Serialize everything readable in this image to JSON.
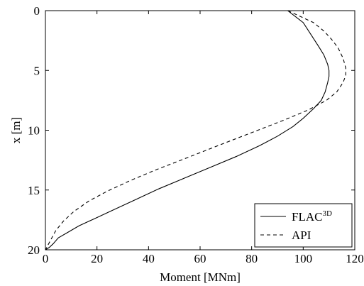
{
  "chart_data": {
    "type": "line",
    "xlabel": "Moment [MNm]",
    "ylabel": "x [m]",
    "xlim": [
      0,
      120
    ],
    "ylim": [
      0,
      20
    ],
    "y_reversed": true,
    "x_ticks": [
      "0",
      "20",
      "40",
      "60",
      "80",
      "100",
      "120"
    ],
    "y_ticks": [
      "0",
      "5",
      "10",
      "15",
      "20"
    ],
    "grid": false,
    "legend_position": "bottom-right",
    "series": [
      {
        "name": "FLAC",
        "name_superscript": "3D",
        "line_style": "solid",
        "color": "#000000",
        "points": [
          [
            94,
            0
          ],
          [
            97,
            0.5
          ],
          [
            100,
            1
          ],
          [
            103,
            2
          ],
          [
            106,
            3
          ],
          [
            108,
            3.7
          ],
          [
            109.5,
            4.5
          ],
          [
            110,
            5
          ],
          [
            110,
            5.5
          ],
          [
            109.5,
            6
          ],
          [
            108.5,
            6.8
          ],
          [
            107,
            7.5
          ],
          [
            104,
            8.2
          ],
          [
            100,
            9
          ],
          [
            96,
            9.7
          ],
          [
            90,
            10.5
          ],
          [
            83,
            11.3
          ],
          [
            74,
            12.2
          ],
          [
            64,
            13.1
          ],
          [
            54,
            14
          ],
          [
            44,
            14.9
          ],
          [
            35,
            15.8
          ],
          [
            26,
            16.7
          ],
          [
            19,
            17.4
          ],
          [
            13,
            18
          ],
          [
            9,
            18.5
          ],
          [
            5,
            19
          ],
          [
            3,
            19.5
          ],
          [
            1.5,
            19.8
          ],
          [
            0,
            20
          ]
        ]
      },
      {
        "name": "API",
        "line_style": "dashed",
        "color": "#000000",
        "points": [
          [
            94,
            0
          ],
          [
            99,
            0.5
          ],
          [
            104,
            1
          ],
          [
            108,
            1.7
          ],
          [
            111,
            2.4
          ],
          [
            113.5,
            3.1
          ],
          [
            115.5,
            4
          ],
          [
            116.5,
            4.8
          ],
          [
            116.5,
            5.4
          ],
          [
            115.5,
            6
          ],
          [
            113,
            6.8
          ],
          [
            109,
            7.5
          ],
          [
            102,
            8.3
          ],
          [
            92,
            9.2
          ],
          [
            80,
            10.2
          ],
          [
            68,
            11.2
          ],
          [
            55,
            12.3
          ],
          [
            43,
            13.3
          ],
          [
            33,
            14.2
          ],
          [
            24,
            15.1
          ],
          [
            17,
            15.9
          ],
          [
            11,
            16.8
          ],
          [
            7,
            17.6
          ],
          [
            4,
            18.4
          ],
          [
            2,
            19.2
          ],
          [
            1,
            19.6
          ],
          [
            0,
            20
          ]
        ]
      }
    ]
  }
}
